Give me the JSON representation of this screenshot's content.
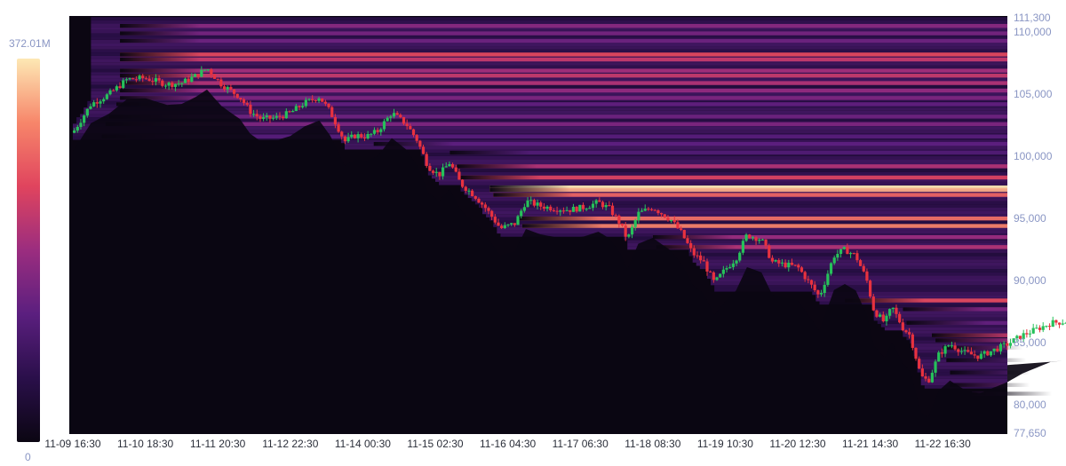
{
  "chart_data": {
    "type": "heatmap",
    "subtype": "liquidation heatmap with candlestick price overlay",
    "colorbar": {
      "max_label": "372.01M",
      "min_label": "0",
      "scale": [
        "#0b0612",
        "#2a0f4a",
        "#5b1f7f",
        "#9b2d7f",
        "#e0445e",
        "#f7866a",
        "#fde8b4"
      ]
    },
    "y_axis": {
      "ylim": [
        77650,
        111300
      ],
      "tick_labels": [
        "111,300",
        "110,000",
        "105,000",
        "100,000",
        "95,000",
        "90,000",
        "85,000",
        "80,000",
        "77,650"
      ],
      "tick_values": [
        111300,
        110000,
        105000,
        100000,
        95000,
        90000,
        85000,
        80000,
        77650
      ],
      "position": "right"
    },
    "x_axis": {
      "tick_labels": [
        "11-09 16:30",
        "11-10 18:30",
        "11-11 20:30",
        "11-12 22:30",
        "11-14 00:30",
        "11-15 02:30",
        "11-16 04:30",
        "11-17 06:30",
        "11-18 08:30",
        "11-19 10:30",
        "11-20 12:30",
        "11-21 14:30",
        "11-22 16:30"
      ]
    },
    "price_path": [
      [
        0,
        101900
      ],
      [
        0.25,
        104200
      ],
      [
        0.5,
        105000
      ],
      [
        0.75,
        106200
      ],
      [
        1.0,
        106300
      ],
      [
        1.3,
        105800
      ],
      [
        1.5,
        105900
      ],
      [
        1.7,
        106500
      ],
      [
        1.85,
        107100
      ],
      [
        2.05,
        105800
      ],
      [
        2.3,
        104800
      ],
      [
        2.45,
        103600
      ],
      [
        2.6,
        103000
      ],
      [
        2.8,
        103100
      ],
      [
        3.0,
        103500
      ],
      [
        3.2,
        104300
      ],
      [
        3.4,
        104800
      ],
      [
        3.55,
        103600
      ],
      [
        3.75,
        101200
      ],
      [
        3.9,
        101700
      ],
      [
        4.05,
        101600
      ],
      [
        4.2,
        102000
      ],
      [
        4.4,
        103500
      ],
      [
        4.6,
        102600
      ],
      [
        4.75,
        101300
      ],
      [
        4.9,
        99200
      ],
      [
        5.05,
        98500
      ],
      [
        5.2,
        99500
      ],
      [
        5.35,
        97800
      ],
      [
        5.55,
        96800
      ],
      [
        5.7,
        95800
      ],
      [
        5.9,
        94200
      ],
      [
        6.1,
        94600
      ],
      [
        6.25,
        96400
      ],
      [
        6.45,
        96000
      ],
      [
        6.65,
        95800
      ],
      [
        6.85,
        95700
      ],
      [
        7.05,
        95900
      ],
      [
        7.25,
        96300
      ],
      [
        7.4,
        95800
      ],
      [
        7.55,
        94600
      ],
      [
        7.65,
        93300
      ],
      [
        7.8,
        95400
      ],
      [
        8.0,
        95900
      ],
      [
        8.25,
        94900
      ],
      [
        8.4,
        93800
      ],
      [
        8.55,
        92200
      ],
      [
        8.7,
        91500
      ],
      [
        8.85,
        89800
      ],
      [
        9.0,
        90900
      ],
      [
        9.15,
        91800
      ],
      [
        9.3,
        93700
      ],
      [
        9.5,
        93300
      ],
      [
        9.65,
        91500
      ],
      [
        9.8,
        91300
      ],
      [
        10.0,
        91100
      ],
      [
        10.15,
        89900
      ],
      [
        10.3,
        88700
      ],
      [
        10.5,
        92000
      ],
      [
        10.65,
        92500
      ],
      [
        10.8,
        92000
      ],
      [
        10.95,
        90100
      ],
      [
        11.05,
        87600
      ],
      [
        11.2,
        86600
      ],
      [
        11.3,
        87900
      ],
      [
        11.45,
        86200
      ],
      [
        11.55,
        85600
      ],
      [
        11.7,
        82300
      ],
      [
        11.8,
        81900
      ],
      [
        11.95,
        84100
      ],
      [
        12.1,
        84900
      ],
      [
        12.3,
        84200
      ],
      [
        12.5,
        83900
      ],
      [
        12.7,
        84400
      ],
      [
        12.9,
        84900
      ],
      [
        13.1,
        85600
      ],
      [
        13.3,
        86100
      ],
      [
        13.5,
        86600
      ],
      [
        13.7,
        86700
      ]
    ],
    "horizontal_bands": [
      {
        "price": 97500,
        "intensity": 1.0
      },
      {
        "price": 97300,
        "intensity": 0.9
      },
      {
        "price": 96900,
        "intensity": 0.75
      },
      {
        "price": 98300,
        "intensity": 0.65
      },
      {
        "price": 99200,
        "intensity": 0.55
      },
      {
        "price": 95000,
        "intensity": 0.78
      },
      {
        "price": 94400,
        "intensity": 0.82
      },
      {
        "price": 93500,
        "intensity": 0.5
      },
      {
        "price": 92700,
        "intensity": 0.55
      },
      {
        "price": 108200,
        "intensity": 0.68
      },
      {
        "price": 107800,
        "intensity": 0.6
      },
      {
        "price": 106900,
        "intensity": 0.52
      },
      {
        "price": 106500,
        "intensity": 0.6
      },
      {
        "price": 105900,
        "intensity": 0.55
      },
      {
        "price": 105300,
        "intensity": 0.48
      },
      {
        "price": 104700,
        "intensity": 0.42
      },
      {
        "price": 104200,
        "intensity": 0.35
      },
      {
        "price": 103200,
        "intensity": 0.38
      },
      {
        "price": 102600,
        "intensity": 0.42
      },
      {
        "price": 101600,
        "intensity": 0.32
      },
      {
        "price": 110500,
        "intensity": 0.45
      },
      {
        "price": 109900,
        "intensity": 0.4
      },
      {
        "price": 109300,
        "intensity": 0.38
      },
      {
        "price": 101000,
        "intensity": 0.34
      },
      {
        "price": 100300,
        "intensity": 0.3
      },
      {
        "price": 88400,
        "intensity": 0.68
      },
      {
        "price": 87700,
        "intensity": 0.42
      },
      {
        "price": 86600,
        "intensity": 0.36
      },
      {
        "price": 85600,
        "intensity": 0.6
      },
      {
        "price": 85200,
        "intensity": 0.5
      },
      {
        "price": 84600,
        "intensity": 0.4
      },
      {
        "price": 83600,
        "intensity": 0.3
      },
      {
        "price": 82600,
        "intensity": 0.32
      },
      {
        "price": 81600,
        "intensity": 0.38
      },
      {
        "price": 80900,
        "intensity": 0.34
      }
    ]
  }
}
